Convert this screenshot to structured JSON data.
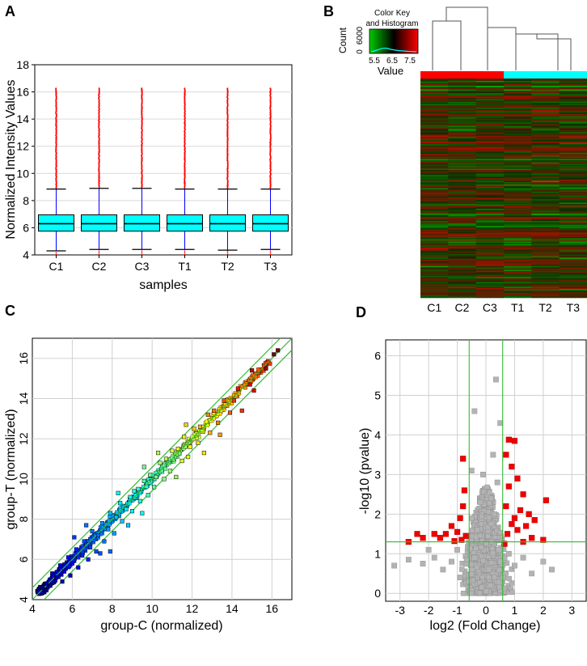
{
  "panels": {
    "A": "A",
    "B": "B",
    "C": "C",
    "D": "D"
  },
  "chart_data": [
    {
      "panel": "A",
      "type": "box",
      "title": "",
      "xlabel": "samples",
      "ylabel": "Normalized Intensity Values",
      "ylim": [
        4,
        18
      ],
      "yticks": [
        "4",
        "6",
        "8",
        "10",
        "12",
        "14",
        "16",
        "18"
      ],
      "grid": true,
      "categories": [
        "C1",
        "C2",
        "C3",
        "T1",
        "T2",
        "T3"
      ],
      "boxes": [
        {
          "whisker_low": 4.3,
          "q1": 5.75,
          "median": 6.3,
          "q3": 6.95,
          "whisker_high": 8.85,
          "outlier_max": 16.3
        },
        {
          "whisker_low": 4.4,
          "q1": 5.75,
          "median": 6.3,
          "q3": 6.95,
          "whisker_high": 8.9,
          "outlier_max": 16.3
        },
        {
          "whisker_low": 4.4,
          "q1": 5.75,
          "median": 6.3,
          "q3": 6.95,
          "whisker_high": 8.9,
          "outlier_max": 16.3
        },
        {
          "whisker_low": 4.4,
          "q1": 5.75,
          "median": 6.3,
          "q3": 6.95,
          "whisker_high": 8.85,
          "outlier_max": 16.3
        },
        {
          "whisker_low": 4.35,
          "q1": 5.75,
          "median": 6.3,
          "q3": 6.95,
          "whisker_high": 8.85,
          "outlier_max": 16.3
        },
        {
          "whisker_low": 4.4,
          "q1": 5.75,
          "median": 6.3,
          "q3": 6.95,
          "whisker_high": 8.85,
          "outlier_max": 16.3
        }
      ],
      "box_color": "#00ffff",
      "whisker_color": "#0000ff",
      "outlier_color": "#ff0000"
    },
    {
      "panel": "B",
      "type": "heatmap",
      "key_title_line1": "Color Key",
      "key_title_line2": "and Histogram",
      "key_ylabel": "Count",
      "key_yticks": [
        "0",
        "6000"
      ],
      "key_xticks": [
        "5.5",
        "6.5",
        "7.5"
      ],
      "key_xlabel": "Value",
      "columns": [
        "C1",
        "C2",
        "C3",
        "T1",
        "T2",
        "T3"
      ],
      "group_colors": [
        "#ff0000",
        "#ff0000",
        "#ff0000",
        "#00ffff",
        "#00ffff",
        "#00ffff"
      ],
      "low_color": "#00cc00",
      "mid_color": "#000000",
      "high_color": "#ff0000",
      "dendrogram": "C1 and C2|C3|T1|T2|T3 split at top; T-cluster nested"
    },
    {
      "panel": "C",
      "type": "scatter",
      "xlabel": "group-C (normalized)",
      "ylabel": "group-T (normalized)",
      "xlim": [
        4,
        17
      ],
      "ylim": [
        4,
        17
      ],
      "xticks": [
        "4",
        "6",
        "8",
        "10",
        "12",
        "14",
        "16"
      ],
      "yticks": [
        "4",
        "6",
        "8",
        "10",
        "12",
        "14",
        "16"
      ],
      "reference_lines": [
        "y = x",
        "y = x + 0.585",
        "y = x - 0.585"
      ],
      "line_color": "#33bb33",
      "grid": true,
      "colormap": "jet by intensity",
      "points": [
        [
          16.3,
          16.4
        ],
        [
          16.1,
          16.2
        ],
        [
          15.7,
          15.5
        ],
        [
          15.0,
          15.4
        ],
        [
          14.9,
          14.7
        ],
        [
          15.1,
          14.4
        ],
        [
          14.3,
          14.5
        ],
        [
          14.1,
          13.9
        ],
        [
          13.6,
          13.9
        ],
        [
          13.9,
          13.3
        ],
        [
          13.1,
          13.4
        ],
        [
          13.3,
          12.8
        ],
        [
          12.8,
          13.2
        ],
        [
          12.4,
          12.6
        ],
        [
          12.9,
          12.3
        ],
        [
          12.1,
          12.5
        ],
        [
          11.9,
          11.6
        ],
        [
          12.3,
          11.8
        ],
        [
          11.6,
          12.1
        ],
        [
          11.3,
          11.5
        ],
        [
          11.8,
          11.1
        ],
        [
          11.0,
          11.4
        ],
        [
          11.5,
          10.9
        ],
        [
          10.7,
          11.0
        ],
        [
          10.9,
          10.4
        ],
        [
          10.4,
          10.8
        ],
        [
          10.2,
          10.1
        ],
        [
          10.6,
          10.0
        ],
        [
          9.9,
          10.2
        ],
        [
          10.1,
          9.6
        ],
        [
          9.6,
          9.9
        ],
        [
          9.3,
          9.5
        ],
        [
          9.8,
          9.2
        ],
        [
          9.1,
          9.4
        ],
        [
          9.4,
          8.9
        ],
        [
          8.9,
          9.1
        ],
        [
          8.7,
          8.5
        ],
        [
          9.0,
          8.4
        ],
        [
          8.4,
          8.8
        ],
        [
          8.2,
          8.1
        ],
        [
          8.5,
          7.9
        ],
        [
          7.9,
          8.3
        ],
        [
          7.8,
          7.5
        ],
        [
          8.1,
          7.3
        ],
        [
          7.5,
          7.8
        ],
        [
          7.3,
          7.2
        ],
        [
          7.6,
          6.9
        ],
        [
          7.0,
          7.4
        ],
        [
          6.9,
          6.6
        ],
        [
          7.2,
          6.4
        ],
        [
          6.6,
          6.9
        ],
        [
          6.5,
          6.2
        ],
        [
          6.8,
          6.0
        ],
        [
          6.2,
          6.5
        ],
        [
          6.0,
          5.8
        ],
        [
          6.3,
          5.6
        ],
        [
          5.8,
          6.1
        ],
        [
          5.6,
          5.4
        ],
        [
          5.9,
          5.2
        ],
        [
          5.4,
          5.7
        ],
        [
          5.2,
          5.1
        ],
        [
          5.5,
          4.9
        ],
        [
          5.0,
          5.3
        ],
        [
          4.9,
          4.7
        ],
        [
          4.7,
          4.8
        ],
        [
          4.6,
          4.5
        ],
        [
          4.5,
          4.6
        ],
        [
          8.8,
          7.7
        ],
        [
          9.5,
          8.3
        ],
        [
          11.2,
          10.1
        ],
        [
          12.6,
          11.3
        ],
        [
          7.4,
          6.3
        ],
        [
          6.7,
          7.7
        ],
        [
          8.3,
          9.3
        ],
        [
          10.3,
          11.3
        ],
        [
          13.4,
          12.2
        ],
        [
          14.5,
          13.4
        ],
        [
          7.9,
          6.4
        ],
        [
          6.1,
          7.1
        ],
        [
          9.6,
          10.6
        ],
        [
          11.7,
          12.7
        ]
      ]
    },
    {
      "panel": "D",
      "type": "scatter",
      "subtype": "volcano",
      "xlabel": "log2 (Fold Change)",
      "ylabel": "-log10 (pvalue)",
      "xlim": [
        -3.5,
        3.5
      ],
      "ylim": [
        -0.2,
        6.4
      ],
      "xticks": [
        "-3",
        "-2",
        "-1",
        "0",
        "1",
        "2",
        "3"
      ],
      "yticks": [
        "0",
        "1",
        "2",
        "3",
        "4",
        "5",
        "6"
      ],
      "thresholds": {
        "fold_change_log2": [
          -0.585,
          0.585
        ],
        "neglog10_p": 1.3
      },
      "line_color": "#33bb33",
      "not_significant_color": "#b3b3b3",
      "significant_color": "#ee0000",
      "significant_points": [
        [
          0.8,
          3.88
        ],
        [
          1.0,
          3.85
        ],
        [
          -0.8,
          3.4
        ],
        [
          0.7,
          3.5
        ],
        [
          0.9,
          3.2
        ],
        [
          1.1,
          2.9
        ],
        [
          0.8,
          2.7
        ],
        [
          1.3,
          2.5
        ],
        [
          2.1,
          2.35
        ],
        [
          0.7,
          2.2
        ],
        [
          1.2,
          2.1
        ],
        [
          1.5,
          2.0
        ],
        [
          1.0,
          1.9
        ],
        [
          1.7,
          1.85
        ],
        [
          0.9,
          1.75
        ],
        [
          1.4,
          1.7
        ],
        [
          1.1,
          1.6
        ],
        [
          0.75,
          1.5
        ],
        [
          1.6,
          1.4
        ],
        [
          2.0,
          1.35
        ],
        [
          1.3,
          1.3
        ],
        [
          -0.75,
          2.6
        ],
        [
          -0.8,
          2.2
        ],
        [
          -0.9,
          1.9
        ],
        [
          -1.2,
          1.7
        ],
        [
          -1.0,
          1.55
        ],
        [
          -1.4,
          1.5
        ],
        [
          -1.8,
          1.5
        ],
        [
          -2.4,
          1.5
        ],
        [
          -0.7,
          1.45
        ],
        [
          -1.6,
          1.4
        ],
        [
          -2.2,
          1.4
        ],
        [
          -0.85,
          1.35
        ],
        [
          -1.1,
          1.32
        ],
        [
          -2.7,
          1.3
        ],
        [
          0.65,
          1.25
        ]
      ],
      "not_significant_points": [
        [
          0.35,
          5.4
        ],
        [
          -0.4,
          4.6
        ],
        [
          0.5,
          4.3
        ],
        [
          -3.2,
          0.7
        ],
        [
          -2.7,
          0.85
        ],
        [
          -2.2,
          0.75
        ],
        [
          -1.8,
          0.9
        ],
        [
          -1.5,
          0.6
        ],
        [
          -1.2,
          0.8
        ],
        [
          -1.0,
          1.1
        ],
        [
          -0.9,
          0.4
        ],
        [
          -0.6,
          0.3
        ],
        [
          -0.4,
          0.9
        ],
        [
          -0.3,
          1.6
        ],
        [
          -0.2,
          2.3
        ],
        [
          -0.1,
          3.0
        ],
        [
          0.0,
          0.05
        ],
        [
          0.1,
          0.6
        ],
        [
          0.2,
          1.3
        ],
        [
          0.3,
          2.0
        ],
        [
          0.4,
          2.8
        ],
        [
          0.5,
          0.8
        ],
        [
          0.6,
          0.4
        ],
        [
          0.8,
          1.0
        ],
        [
          1.0,
          0.7
        ],
        [
          1.3,
          0.9
        ],
        [
          1.6,
          0.5
        ],
        [
          2.0,
          0.8
        ],
        [
          2.3,
          0.6
        ],
        [
          -0.5,
          3.1
        ],
        [
          0.25,
          3.5
        ],
        [
          -0.15,
          0.15
        ],
        [
          0.15,
          0.2
        ],
        [
          -0.5,
          1.9
        ],
        [
          0.45,
          1.1
        ],
        [
          -2.0,
          1.1
        ]
      ]
    }
  ]
}
